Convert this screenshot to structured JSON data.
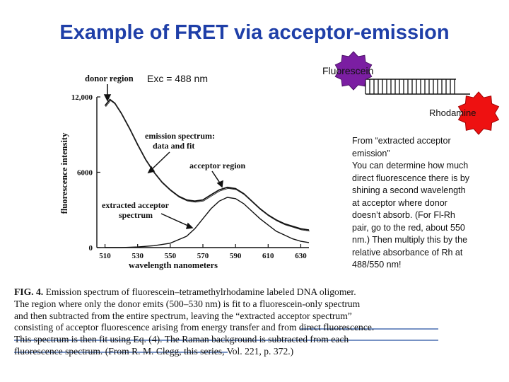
{
  "slide": {
    "title": "Example of FRET via acceptor-emission",
    "excitation": "Exc = 488 nm",
    "fluorescein_label": "Fluorescein",
    "rhodamine_label": "Rhodamine",
    "note_lines": [
      "From “extracted acceptor",
      "emission”",
      "You can determine how much",
      "direct fluorescence there is by",
      "shining a second wavelength",
      "at acceptor where donor",
      "doesn’t absorb. (For Fl-Rh",
      "pair, go to the red, about 550",
      "nm.) Then multiply this by the",
      "relative absorbance of Rh at",
      "488/550 nm!"
    ]
  },
  "caption": {
    "fig_label": "FIG. 4.",
    "lines": [
      " Emission spectrum of fluorescein–tetramethylrhodamine labeled DNA oligomer.",
      "The region where only the donor emits (500–530 nm) is fit to a fluorescein-only spectrum",
      "and then subtracted from the entire spectrum, leaving the “extracted acceptor spectrum”",
      "consisting of acceptor fluorescence arising from energy transfer and from direct fluorescence.",
      "This spectrum is then fit using Eq. (4). The Raman background is subtracted from each",
      "fluorescence spectrum. (From R. M. Clegg, this series, Vol. 221, p. 372.)"
    ],
    "underline_color": "#4a6fb0"
  },
  "chart_data": {
    "type": "line",
    "xlabel": "wavelength nanometers",
    "ylabel": "fluorescence intensity",
    "xlim": [
      505,
      635
    ],
    "ylim": [
      0,
      12000
    ],
    "x_ticks": [
      510,
      530,
      550,
      570,
      590,
      610,
      630
    ],
    "y_ticks": [
      0,
      6000,
      12000
    ],
    "y_tick_labels": [
      "0",
      "6000",
      "12,000"
    ],
    "annotations": {
      "donor_region": "donor region",
      "emission_spectrum_1": "emission spectrum:",
      "emission_spectrum_2": "data and fit",
      "acceptor_region": "acceptor region",
      "extracted_1": "extracted acceptor",
      "extracted_2": "spectrum"
    },
    "series": [
      {
        "x": [
          510,
          513,
          516,
          520,
          525,
          530,
          535,
          540,
          545,
          550,
          555,
          560,
          565,
          570,
          575,
          580,
          585,
          590,
          595,
          600,
          605,
          610,
          615,
          620,
          625,
          630,
          635
        ],
        "values": [
          11300,
          11800,
          11500,
          10700,
          9500,
          8200,
          7000,
          6000,
          5200,
          4600,
          4100,
          3800,
          3700,
          3800,
          4200,
          4600,
          4800,
          4700,
          4300,
          3700,
          3100,
          2600,
          2200,
          1900,
          1700,
          1500,
          1400
        ]
      },
      {
        "x": [
          510,
          520,
          530,
          540,
          550,
          560,
          565,
          570,
          575,
          580,
          585,
          590,
          595,
          600,
          605,
          610,
          615,
          620,
          625,
          630,
          635
        ],
        "values": [
          0,
          0,
          50,
          150,
          350,
          900,
          1500,
          2300,
          3100,
          3700,
          4000,
          3900,
          3500,
          2900,
          2300,
          1800,
          1300,
          1000,
          700,
          500,
          400
        ]
      }
    ]
  }
}
